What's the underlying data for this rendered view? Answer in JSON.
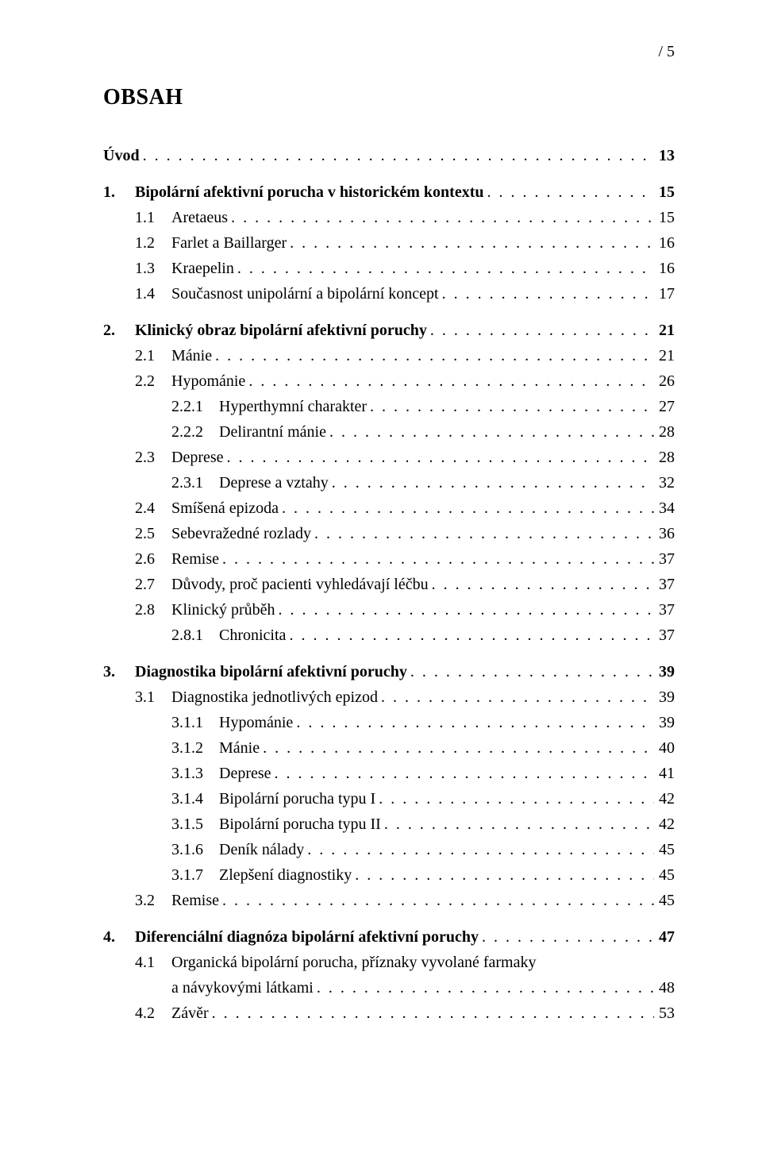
{
  "page_corner": "/  5",
  "title": "OBSAH",
  "colors": {
    "text": "#000000",
    "background": "#ffffff"
  },
  "typography": {
    "font_family": "Times New Roman, serif",
    "body_fontsize_pt": 15,
    "title_fontsize_pt": 21,
    "title_weight": "bold"
  },
  "toc": [
    {
      "level": 0,
      "num": "",
      "label": "Úvod",
      "page": "13",
      "bold": true
    },
    {
      "gap": true
    },
    {
      "level": 0,
      "num": "1.",
      "label": "Bipolární afektivní porucha v historickém kontextu",
      "page": "15",
      "bold": true
    },
    {
      "level": 1,
      "num": "1.1",
      "label": "Aretaeus",
      "page": "15"
    },
    {
      "level": 1,
      "num": "1.2",
      "label": "Farlet a Baillarger",
      "page": "16"
    },
    {
      "level": 1,
      "num": "1.3",
      "label": "Kraepelin",
      "page": "16"
    },
    {
      "level": 1,
      "num": "1.4",
      "label": "Současnost unipolární a bipolární koncept",
      "page": "17"
    },
    {
      "gap": true
    },
    {
      "level": 0,
      "num": "2.",
      "label": "Klinický obraz bipolární afektivní poruchy",
      "page": "21",
      "bold": true
    },
    {
      "level": 1,
      "num": "2.1",
      "label": "Mánie",
      "page": "21"
    },
    {
      "level": 1,
      "num": "2.2",
      "label": "Hypománie",
      "page": "26"
    },
    {
      "level": 2,
      "num": "2.2.1",
      "label": "Hyperthymní charakter",
      "page": "27"
    },
    {
      "level": 2,
      "num": "2.2.2",
      "label": "Delirantní mánie",
      "page": "28"
    },
    {
      "level": 1,
      "num": "2.3",
      "label": "Deprese",
      "page": "28"
    },
    {
      "level": 2,
      "num": "2.3.1",
      "label": "Deprese a vztahy",
      "page": "32"
    },
    {
      "level": 1,
      "num": "2.4",
      "label": "Smíšená epizoda",
      "page": "34"
    },
    {
      "level": 1,
      "num": "2.5",
      "label": "Sebevražedné rozlady",
      "page": "36"
    },
    {
      "level": 1,
      "num": "2.6",
      "label": "Remise",
      "page": "37"
    },
    {
      "level": 1,
      "num": "2.7",
      "label": "Důvody, proč pacienti vyhledávají léčbu",
      "page": "37"
    },
    {
      "level": 1,
      "num": "2.8",
      "label": "Klinický průběh",
      "page": "37"
    },
    {
      "level": 2,
      "num": "2.8.1",
      "label": "Chronicita",
      "page": "37"
    },
    {
      "gap": true
    },
    {
      "level": 0,
      "num": "3.",
      "label": "Diagnostika bipolární afektivní poruchy",
      "page": "39",
      "bold": true
    },
    {
      "level": 1,
      "num": "3.1",
      "label": "Diagnostika jednotlivých epizod",
      "page": "39"
    },
    {
      "level": 2,
      "num": "3.1.1",
      "label": "Hypománie",
      "page": "39"
    },
    {
      "level": 2,
      "num": "3.1.2",
      "label": "Mánie",
      "page": "40"
    },
    {
      "level": 2,
      "num": "3.1.3",
      "label": "Deprese",
      "page": "41"
    },
    {
      "level": 2,
      "num": "3.1.4",
      "label": "Bipolární porucha typu I",
      "page": "42"
    },
    {
      "level": 2,
      "num": "3.1.5",
      "label": "Bipolární porucha typu II",
      "page": "42"
    },
    {
      "level": 2,
      "num": "3.1.6",
      "label": "Deník nálady",
      "page": "45"
    },
    {
      "level": 2,
      "num": "3.1.7",
      "label": "Zlepšení diagnostiky",
      "page": "45"
    },
    {
      "level": 1,
      "num": "3.2",
      "label": "Remise",
      "page": "45"
    },
    {
      "gap": true
    },
    {
      "level": 0,
      "num": "4.",
      "label": "Diferenciální diagnóza bipolární afektivní poruchy",
      "page": "47",
      "bold": true
    },
    {
      "level": 1,
      "num": "4.1",
      "label": "Organická bipolární porucha, příznaky vyvolané farmaky",
      "page": "",
      "nodots": true
    },
    {
      "level": 1,
      "num": "",
      "label": "a návykovými látkami",
      "page": "48",
      "continuation": true
    },
    {
      "level": 1,
      "num": "4.2",
      "label": "Závěr",
      "page": "53"
    }
  ]
}
